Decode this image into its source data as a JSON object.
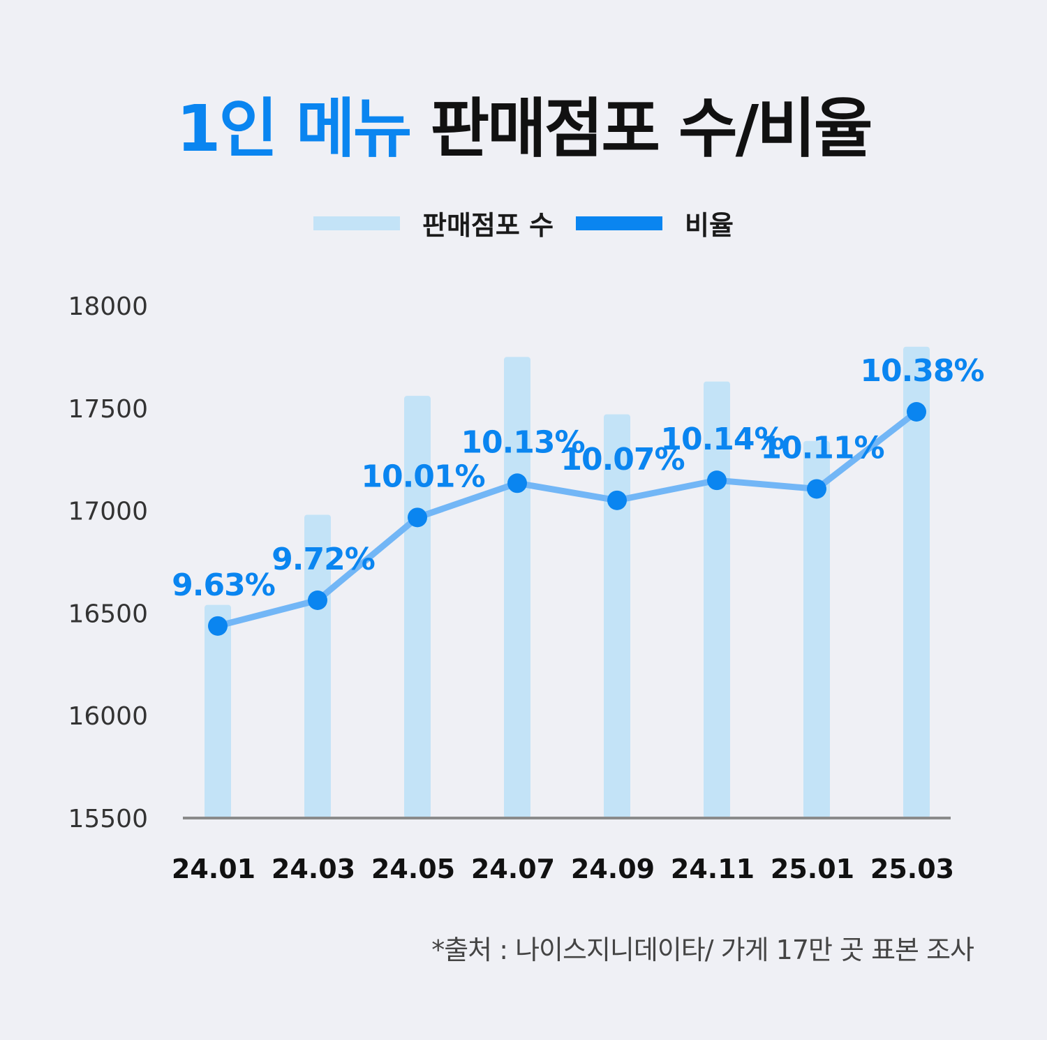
{
  "title": {
    "accent": "1인 메뉴",
    "rest": "판매점포 수/비율"
  },
  "legend": [
    {
      "label": "판매점포 수",
      "color": "#c3e3f7"
    },
    {
      "label": "비율",
      "color": "#0a85f0"
    }
  ],
  "colors": {
    "bar": "#c3e3f7",
    "line": "#72b6f6",
    "point": "#0a85f0",
    "label": "#0a85f0",
    "axis": "#8a8a8a"
  },
  "chart_data": {
    "type": "bar",
    "categories": [
      "24.01",
      "24.03",
      "24.05",
      "24.07",
      "24.09",
      "24.11",
      "25.01",
      "25.03"
    ],
    "ylim": [
      15500,
      18000
    ],
    "yticks": [
      "18000",
      "17500",
      "17000",
      "16500",
      "16000",
      "15500"
    ],
    "series": [
      {
        "name": "판매점포 수",
        "type": "bar",
        "values": [
          16540,
          16980,
          17560,
          17750,
          17470,
          17630,
          17340,
          17800
        ]
      },
      {
        "name": "비율",
        "type": "line",
        "values": [
          9.63,
          9.72,
          10.01,
          10.13,
          10.07,
          10.14,
          10.11,
          10.38
        ],
        "labels": [
          "9.63%",
          "9.72%",
          "10.01%",
          "10.13%",
          "10.07%",
          "10.14%",
          "10.11%",
          "10.38%"
        ]
      }
    ],
    "grid": false,
    "legend_position": "top-center"
  },
  "source": "*출처 : 나이스지니데이타/ 가게 17만 곳 표본 조사"
}
